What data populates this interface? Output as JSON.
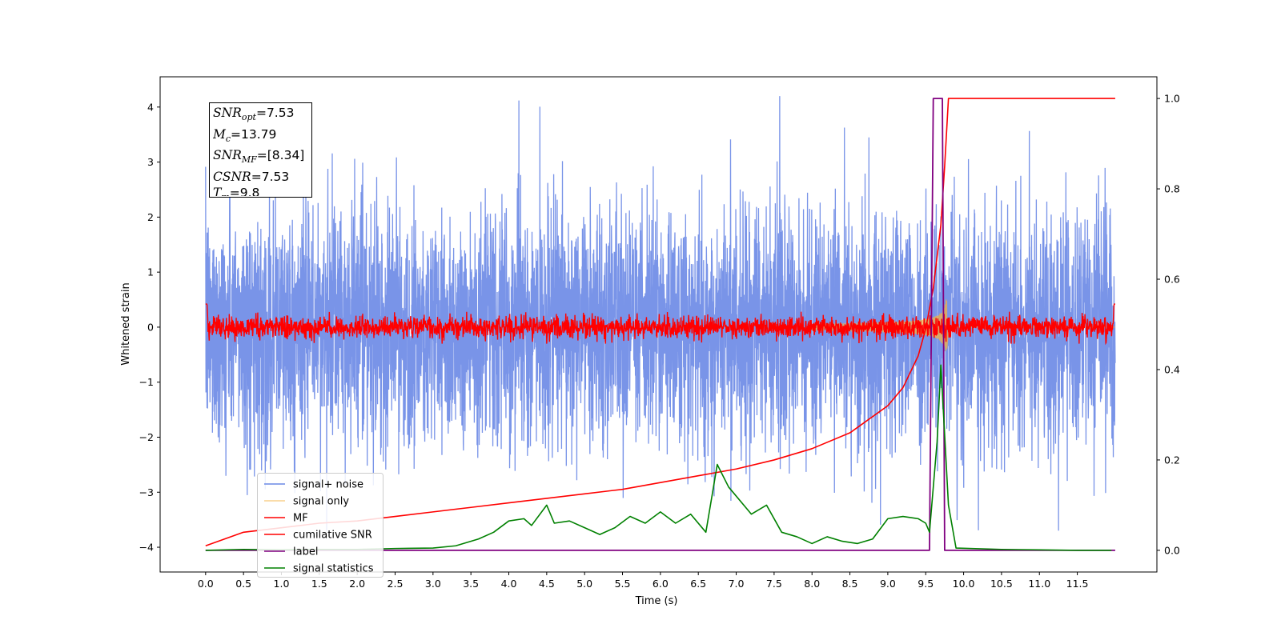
{
  "chart_data": {
    "type": "line",
    "xlabel": "Time (s)",
    "ylabel": "Whitened strain",
    "xlim": [
      -0.6,
      12.55
    ],
    "ylim_left": [
      -4.45,
      4.55
    ],
    "ylim_right": [
      -0.048,
      1.048
    ],
    "x_ticks": [
      0.0,
      0.5,
      1.0,
      1.5,
      2.0,
      2.5,
      3.0,
      3.5,
      4.0,
      4.5,
      5.0,
      5.5,
      6.0,
      6.5,
      7.0,
      7.5,
      8.0,
      8.5,
      9.0,
      9.5,
      10.0,
      10.5,
      11.0,
      11.5
    ],
    "x_tick_labels": [
      "0.0",
      "0.5",
      "1.0",
      "1.5",
      "2.0",
      "2.5",
      "3.0",
      "3.5",
      "4.0",
      "4.5",
      "5.0",
      "5.5",
      "6.0",
      "6.5",
      "7.0",
      "7.5",
      "8.0",
      "8.5",
      "9.0",
      "9.5",
      "10.0",
      "10.5",
      "11.0",
      "11.5"
    ],
    "y_left_ticks": [
      -4,
      -3,
      -2,
      -1,
      0,
      1,
      2,
      3,
      4
    ],
    "y_left_tick_labels": [
      "−4",
      "−3",
      "−2",
      "−1",
      "0",
      "1",
      "2",
      "3",
      "4"
    ],
    "y_right_ticks": [
      0.0,
      0.2,
      0.4,
      0.6,
      0.8,
      1.0
    ],
    "y_right_tick_labels": [
      "0.0",
      "0.2",
      "0.4",
      "0.6",
      "0.8",
      "1.0"
    ],
    "legend_location": "lower-left",
    "annotation": {
      "snr_opt": "=7.53",
      "mc": "=13.79",
      "snr_mf": "=[8.34]",
      "csnr": "=7.53",
      "tm": "=9.8"
    },
    "series": [
      {
        "name": "signal+ noise",
        "axis": "left",
        "color": "#6a88e6",
        "x_range": [
          0.0,
          12.0
        ],
        "amplitude_envelope": [
          -3.7,
          4.2
        ]
      },
      {
        "name": "signal only",
        "axis": "left",
        "color": "#f5b041",
        "chirp_end": 9.78,
        "peak_amplitude": 0.65
      },
      {
        "name": "MF",
        "axis": "left",
        "color": "#ff0000",
        "x_range": [
          0.0,
          12.0
        ],
        "amplitude": 0.3
      },
      {
        "name": "cumilative SNR",
        "axis": "right",
        "color": "#ff0000",
        "x": [
          0.0,
          0.5,
          1.0,
          1.5,
          2.0,
          2.5,
          3.0,
          3.5,
          4.0,
          4.5,
          5.0,
          5.5,
          6.0,
          6.5,
          7.0,
          7.5,
          8.0,
          8.5,
          9.0,
          9.2,
          9.4,
          9.5,
          9.6,
          9.7,
          9.75,
          9.8,
          10.0,
          11.0,
          12.0
        ],
        "y": [
          0.01,
          0.04,
          0.05,
          0.06,
          0.065,
          0.075,
          0.085,
          0.095,
          0.105,
          0.115,
          0.125,
          0.135,
          0.15,
          0.165,
          0.18,
          0.2,
          0.225,
          0.26,
          0.32,
          0.36,
          0.43,
          0.49,
          0.58,
          0.72,
          0.85,
          1.0,
          1.0,
          1.0,
          1.0
        ]
      },
      {
        "name": "label",
        "axis": "right",
        "color": "#800080",
        "x": [
          0.0,
          9.55,
          9.6,
          9.72,
          9.75,
          12.0
        ],
        "y": [
          0,
          0,
          1,
          1,
          0,
          0
        ]
      },
      {
        "name": "signal statistics",
        "axis": "right",
        "color": "#008000",
        "x": [
          0.0,
          0.5,
          1.0,
          1.5,
          2.0,
          2.5,
          3.0,
          3.3,
          3.6,
          3.8,
          4.0,
          4.2,
          4.3,
          4.5,
          4.6,
          4.8,
          5.0,
          5.2,
          5.4,
          5.6,
          5.8,
          6.0,
          6.2,
          6.4,
          6.6,
          6.75,
          6.9,
          7.2,
          7.4,
          7.6,
          7.8,
          8.0,
          8.2,
          8.4,
          8.6,
          8.8,
          9.0,
          9.2,
          9.4,
          9.5,
          9.55,
          9.65,
          9.7,
          9.8,
          9.9,
          10.5,
          11.0,
          11.5,
          11.95
        ],
        "y": [
          0.0,
          0.002,
          0.001,
          0.002,
          0.002,
          0.004,
          0.005,
          0.01,
          0.025,
          0.04,
          0.065,
          0.07,
          0.055,
          0.1,
          0.06,
          0.065,
          0.05,
          0.035,
          0.05,
          0.075,
          0.06,
          0.085,
          0.06,
          0.08,
          0.04,
          0.19,
          0.14,
          0.08,
          0.1,
          0.04,
          0.03,
          0.015,
          0.03,
          0.02,
          0.015,
          0.025,
          0.07,
          0.075,
          0.07,
          0.06,
          0.04,
          0.24,
          0.41,
          0.1,
          0.005,
          0.002,
          0.001,
          0.0,
          0.0
        ]
      }
    ]
  }
}
